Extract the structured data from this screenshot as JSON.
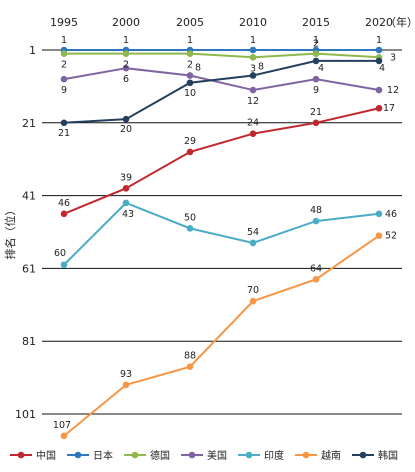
{
  "chart_data": {
    "type": "line",
    "title": "",
    "xlabel": "",
    "ylabel": "排名（位）",
    "x_unit": "（年）",
    "x_ticks": [
      "1995",
      "2000",
      "2005",
      "2010",
      "2015",
      "2020"
    ],
    "x": [
      1995,
      2000,
      2005,
      2010,
      2015,
      2020
    ],
    "y_ticks": [
      "1",
      "21",
      "41",
      "61",
      "81",
      "101"
    ],
    "ylim": [
      1,
      107
    ],
    "y_inverted": true,
    "grid": "horizontal",
    "legend_position": "bottom",
    "series": [
      {
        "name": "中国",
        "color": "#c0282e",
        "values": [
          46,
          39,
          29,
          24,
          21,
          17
        ]
      },
      {
        "name": "日本",
        "color": "#2e76c0",
        "values": [
          1,
          1,
          1,
          1,
          1,
          1
        ]
      },
      {
        "name": "德国",
        "color": "#8fb84e",
        "values": [
          2,
          2,
          2,
          3,
          2,
          3
        ]
      },
      {
        "name": "美国",
        "color": "#8064a2",
        "values": [
          9,
          6,
          8,
          12,
          9,
          12
        ]
      },
      {
        "name": "印度",
        "color": "#4bacc6",
        "values": [
          60,
          43,
          50,
          54,
          48,
          46
        ]
      },
      {
        "name": "越南",
        "color": "#f79646",
        "values": [
          107,
          93,
          88,
          70,
          64,
          52
        ]
      },
      {
        "name": "韩国",
        "color": "#243f60",
        "values": [
          21,
          20,
          10,
          8,
          4,
          4
        ]
      }
    ]
  }
}
